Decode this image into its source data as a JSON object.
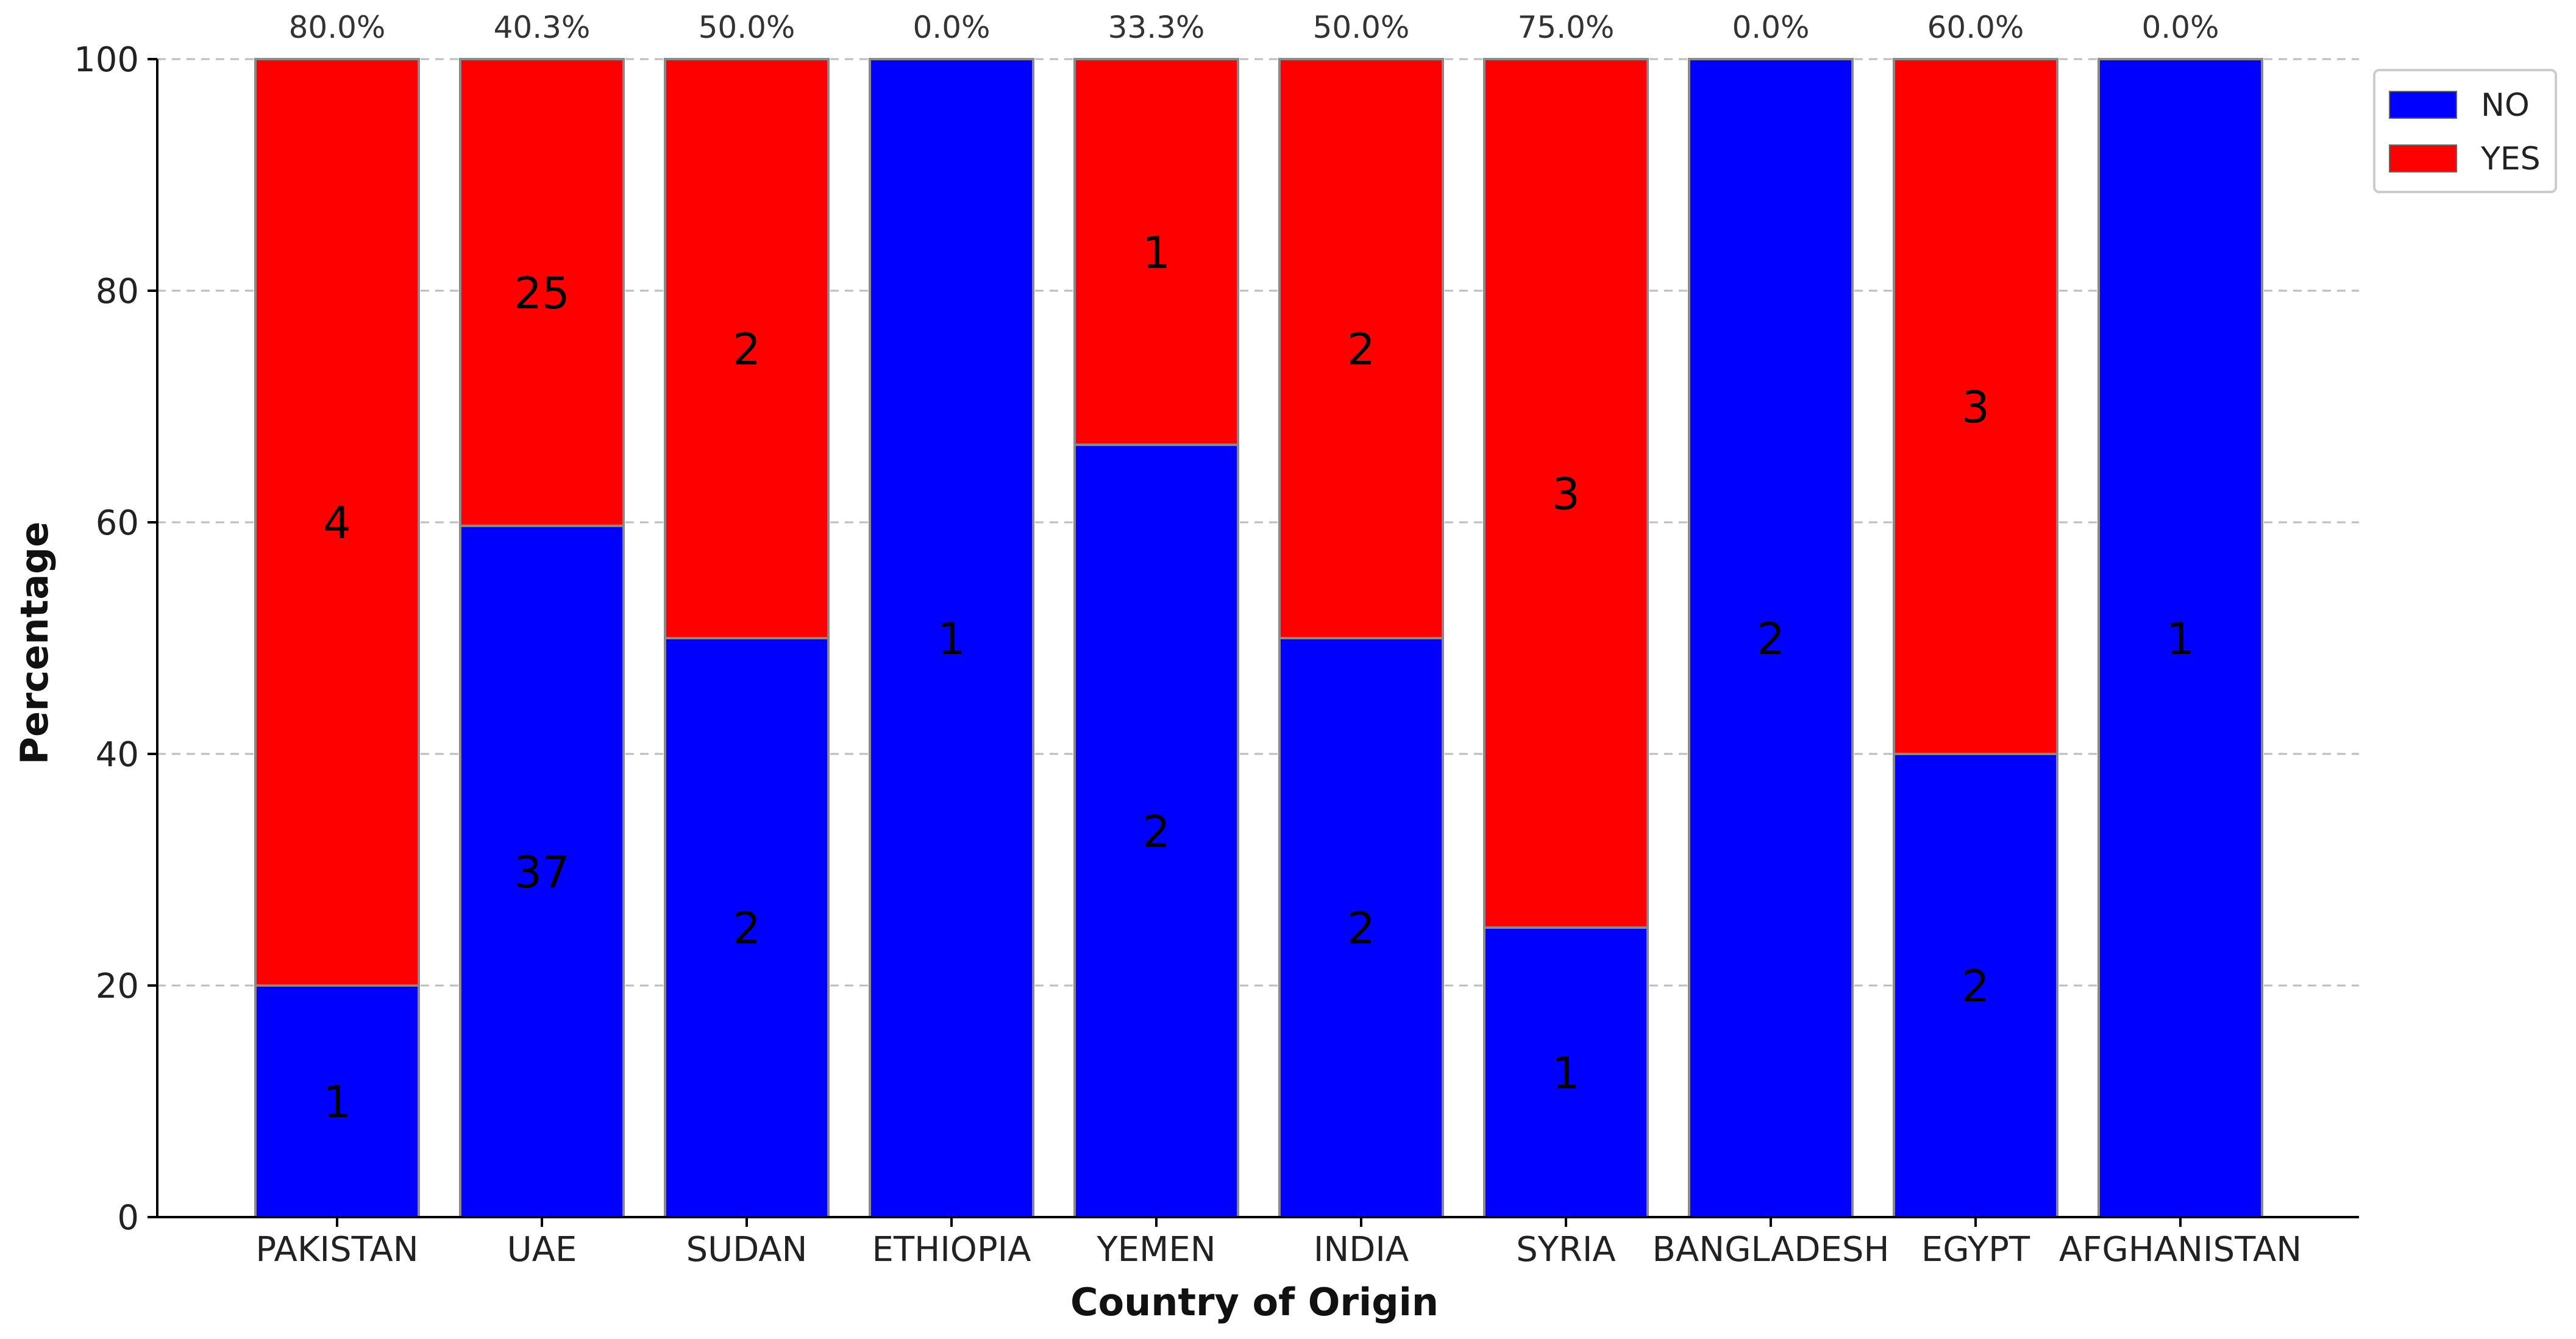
{
  "chart_data": {
    "type": "bar",
    "stacked": true,
    "title": "",
    "xlabel": "Country of Origin",
    "ylabel": "Percentage",
    "ylim": [
      0,
      100
    ],
    "yticks": [
      "0",
      "20",
      "40",
      "60",
      "80",
      "100"
    ],
    "grid": true,
    "legend_position": "top-right",
    "categories": [
      "PAKISTAN",
      "UAE",
      "SUDAN",
      "ETHIOPIA",
      "YEMEN",
      "INDIA",
      "SYRIA",
      "BANGLADESH",
      "EGYPT",
      "AFGHANISTAN"
    ],
    "series": [
      {
        "name": "NO",
        "color": "#0000ff",
        "values": [
          20.0,
          59.7,
          50.0,
          100.0,
          66.7,
          50.0,
          25.0,
          100.0,
          40.0,
          100.0
        ],
        "counts": [
          "1",
          "37",
          "2",
          "1",
          "2",
          "2",
          "1",
          "2",
          "2",
          "1"
        ]
      },
      {
        "name": "YES",
        "color": "#ff0000",
        "values": [
          80.0,
          40.3,
          50.0,
          0.0,
          33.3,
          50.0,
          75.0,
          0.0,
          60.0,
          0.0
        ],
        "counts": [
          "4",
          "25",
          "2",
          "",
          "1",
          "2",
          "3",
          "",
          "3",
          ""
        ]
      }
    ],
    "top_labels": [
      "80.0%",
      "40.3%",
      "50.0%",
      "0.0%",
      "33.3%",
      "50.0%",
      "75.0%",
      "0.0%",
      "60.0%",
      "0.0%"
    ]
  }
}
